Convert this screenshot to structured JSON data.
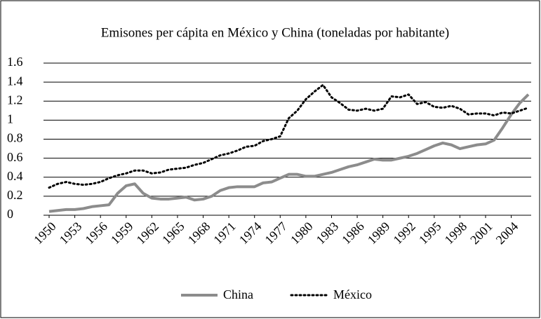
{
  "chart_data": {
    "type": "line",
    "title": "Emisones per cápita en México y China (toneladas por habitante)",
    "x": [
      1950,
      1951,
      1952,
      1953,
      1954,
      1955,
      1956,
      1957,
      1958,
      1959,
      1960,
      1961,
      1962,
      1963,
      1964,
      1965,
      1966,
      1967,
      1968,
      1969,
      1970,
      1971,
      1972,
      1973,
      1974,
      1975,
      1976,
      1977,
      1978,
      1979,
      1980,
      1981,
      1982,
      1983,
      1984,
      1985,
      1986,
      1987,
      1988,
      1989,
      1990,
      1991,
      1992,
      1993,
      1994,
      1995,
      1996,
      1997,
      1998,
      1999,
      2000,
      2001,
      2002,
      2003,
      2004,
      2005,
      2006
    ],
    "series": [
      {
        "name": "China",
        "color": "#8c8c8c",
        "style": "solid",
        "values": [
          0.04,
          0.05,
          0.06,
          0.06,
          0.07,
          0.09,
          0.1,
          0.11,
          0.23,
          0.31,
          0.33,
          0.23,
          0.18,
          0.17,
          0.17,
          0.18,
          0.19,
          0.16,
          0.17,
          0.2,
          0.26,
          0.29,
          0.3,
          0.3,
          0.3,
          0.34,
          0.35,
          0.39,
          0.43,
          0.43,
          0.41,
          0.41,
          0.43,
          0.45,
          0.48,
          0.51,
          0.53,
          0.56,
          0.59,
          0.58,
          0.58,
          0.6,
          0.62,
          0.65,
          0.69,
          0.73,
          0.76,
          0.74,
          0.7,
          0.72,
          0.74,
          0.75,
          0.79,
          0.92,
          1.06,
          1.18,
          1.27
        ]
      },
      {
        "name": "México",
        "color": "#000000",
        "style": "dotted",
        "values": [
          0.29,
          0.33,
          0.35,
          0.33,
          0.32,
          0.33,
          0.35,
          0.39,
          0.42,
          0.44,
          0.47,
          0.47,
          0.44,
          0.45,
          0.48,
          0.49,
          0.5,
          0.53,
          0.55,
          0.59,
          0.63,
          0.65,
          0.68,
          0.72,
          0.73,
          0.78,
          0.8,
          0.83,
          1.02,
          1.1,
          1.22,
          1.3,
          1.37,
          1.24,
          1.18,
          1.11,
          1.1,
          1.12,
          1.1,
          1.12,
          1.25,
          1.24,
          1.27,
          1.17,
          1.19,
          1.14,
          1.13,
          1.15,
          1.12,
          1.06,
          1.07,
          1.07,
          1.05,
          1.08,
          1.07,
          1.1,
          1.13
        ]
      }
    ],
    "xlim": [
      1950,
      2006
    ],
    "xticks": [
      1950,
      1953,
      1956,
      1959,
      1962,
      1965,
      1968,
      1971,
      1974,
      1977,
      1980,
      1983,
      1986,
      1989,
      1992,
      1995,
      1998,
      2001,
      2004
    ],
    "ylim": [
      0,
      1.6
    ],
    "yticks": [
      0,
      0.2,
      0.4,
      0.6,
      0.8,
      1,
      1.2,
      1.4,
      1.6
    ],
    "grid": true,
    "legend": "bottom"
  }
}
